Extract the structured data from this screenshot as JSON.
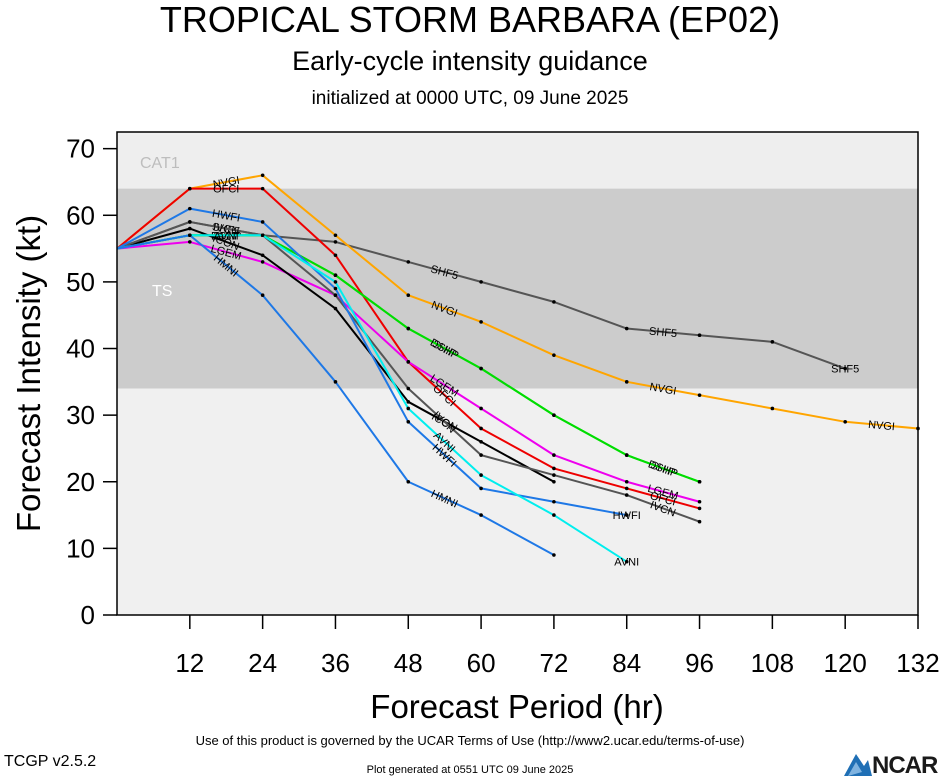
{
  "header": {
    "title": "TROPICAL STORM BARBARA (EP02)",
    "subtitle": "Early-cycle intensity guidance",
    "init": "initialized at 0000 UTC, 09 June 2025"
  },
  "footer": {
    "terms": "Use of this product is governed by the UCAR Terms of Use (http://www2.ucar.edu/terms-of-use)",
    "version": "TCGP v2.5.2",
    "generated": "Plot generated at 0551 UTC   09 June 2025",
    "logo": "NCAR"
  },
  "chart_data": {
    "type": "line",
    "xlabel": "Forecast Period (hr)",
    "ylabel": "Forecast Intensity (kt)",
    "xlim": [
      0,
      132
    ],
    "ylim": [
      0,
      70
    ],
    "xticks": [
      12,
      24,
      36,
      48,
      60,
      72,
      84,
      96,
      108,
      120,
      132
    ],
    "yticks": [
      0,
      10,
      20,
      30,
      40,
      50,
      60,
      70
    ],
    "grid": false,
    "bands": [
      {
        "label": "CAT1",
        "from": 64,
        "to": 72,
        "color": "#eeeeee"
      },
      {
        "label": "TS",
        "from": 34,
        "to": 64,
        "color": "#cccccc"
      }
    ],
    "series": [
      {
        "name": "SHF5",
        "color": "#555555",
        "x": [
          0,
          12,
          24,
          36,
          48,
          60,
          72,
          84,
          96,
          108,
          120
        ],
        "y": [
          55,
          59,
          57,
          56,
          53,
          50,
          47,
          43,
          42,
          41,
          37
        ]
      },
      {
        "name": "NVGI",
        "color": "#ffa500",
        "x": [
          0,
          12,
          24,
          36,
          48,
          60,
          72,
          84,
          96,
          108,
          120,
          132
        ],
        "y": [
          55,
          64,
          66,
          57,
          48,
          44,
          39,
          35,
          33,
          31,
          29,
          28
        ]
      },
      {
        "name": "OFCI",
        "color": "#ee0000",
        "x": [
          0,
          12,
          24,
          36,
          48,
          60,
          72,
          84,
          96
        ],
        "y": [
          55,
          64,
          64,
          54,
          38,
          28,
          22,
          19,
          16
        ]
      },
      {
        "name": "SHIP",
        "color": "#00dd00",
        "x": [
          0,
          12,
          24,
          36,
          48,
          60,
          72,
          84,
          96
        ],
        "y": [
          55,
          57,
          57,
          51,
          43,
          37,
          30,
          24,
          20
        ]
      },
      {
        "name": "DSHP",
        "color": "#00dd00",
        "x": [
          0,
          12,
          24,
          36,
          48,
          60,
          72,
          84,
          96
        ],
        "y": [
          55,
          57,
          57,
          51,
          43,
          37,
          30,
          24,
          20
        ]
      },
      {
        "name": "LGEM",
        "color": "#ee00ee",
        "x": [
          0,
          12,
          24,
          36,
          48,
          60,
          72,
          84,
          96
        ],
        "y": [
          55,
          56,
          53,
          48,
          38,
          31,
          24,
          20,
          17
        ]
      },
      {
        "name": "ICON",
        "color": "#000000",
        "x": [
          0,
          12,
          24,
          36,
          48,
          60,
          72
        ],
        "y": [
          55,
          58,
          54,
          46,
          32,
          26,
          20
        ]
      },
      {
        "name": "IVCN",
        "color": "#555555",
        "x": [
          0,
          12,
          24,
          36,
          48,
          60,
          72,
          84,
          96
        ],
        "y": [
          55,
          59,
          57,
          48,
          34,
          24,
          21,
          18,
          14
        ]
      },
      {
        "name": "HWFI",
        "color": "#1e78e6",
        "x": [
          0,
          12,
          24,
          36,
          48,
          60,
          72,
          84
        ],
        "y": [
          55,
          61,
          59,
          49,
          29,
          19,
          17,
          15
        ]
      },
      {
        "name": "AVNI",
        "color": "#00eeee",
        "x": [
          0,
          12,
          24,
          36,
          48,
          60,
          72,
          84
        ],
        "y": [
          55,
          57,
          57,
          50,
          31,
          21,
          15,
          8
        ]
      },
      {
        "name": "HMNI",
        "color": "#1e78e6",
        "x": [
          0,
          12,
          24,
          36,
          48,
          60,
          72
        ],
        "y": [
          55,
          57,
          48,
          35,
          20,
          15,
          9
        ]
      }
    ]
  }
}
